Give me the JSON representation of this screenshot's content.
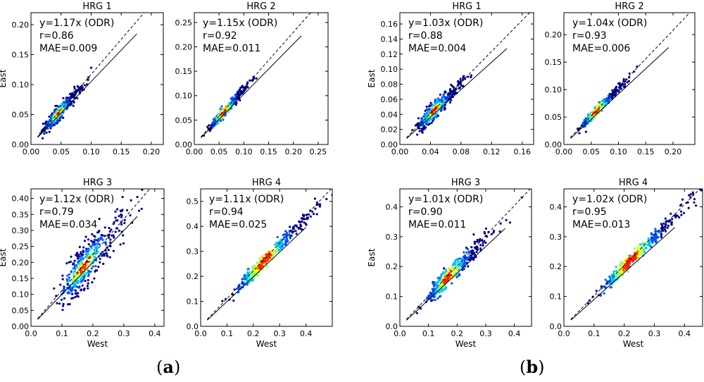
{
  "figure_captions": {
    "a": {
      "open": "(",
      "letter": "a",
      "close": ")"
    },
    "b": {
      "open": "(",
      "letter": "b",
      "close": ")"
    }
  },
  "colors": {
    "density_low": "#00008b",
    "density_mid": "#00bfff",
    "density_high": "#ffff00",
    "density_peak": "#ff2000",
    "fit_line": "#000000"
  },
  "chart_data": [
    {
      "id": "a-hrg1",
      "type": "scatter",
      "title": "HRG 1",
      "xlabel": "",
      "ylabel": "East",
      "xlim": [
        0,
        0.22
      ],
      "ylim": [
        0,
        0.22
      ],
      "xticks": [
        "0.00",
        "0.05",
        "0.10",
        "0.15",
        "0.20"
      ],
      "yticks": [
        "0.00",
        "0.05",
        "0.10",
        "0.15",
        "0.20"
      ],
      "annotation": [
        "y=1.17x (ODR)",
        "r=0.86",
        "MAE=0.009"
      ],
      "slope": 1.17,
      "r": 0.86,
      "mae": 0.009,
      "center": 0.045
    },
    {
      "id": "a-hrg2",
      "type": "scatter",
      "title": "HRG 2",
      "xlabel": "",
      "ylabel": "",
      "xlim": [
        0,
        0.27
      ],
      "ylim": [
        0,
        0.27
      ],
      "xticks": [
        "0.00",
        "0.05",
        "0.10",
        "0.15",
        "0.20",
        "0.25"
      ],
      "yticks": [
        "0.00",
        "0.05",
        "0.10",
        "0.15",
        "0.20",
        "0.25"
      ],
      "annotation": [
        "y=1.15x (ODR)",
        "r=0.92",
        "MAE=0.011"
      ],
      "slope": 1.15,
      "r": 0.92,
      "mae": 0.011,
      "center": 0.06
    },
    {
      "id": "a-hrg3",
      "type": "scatter",
      "title": "HRG 3",
      "xlabel": "West",
      "ylabel": "East",
      "xlim": [
        0,
        0.43
      ],
      "ylim": [
        0,
        0.43
      ],
      "xticks": [
        "0.0",
        "0.1",
        "0.2",
        "0.3",
        "0.4"
      ],
      "yticks": [
        "0.00",
        "0.05",
        "0.10",
        "0.15",
        "0.20",
        "0.25",
        "0.30",
        "0.35",
        "0.40"
      ],
      "annotation": [
        "y=1.12x (ODR)",
        "r=0.79",
        "MAE=0.034"
      ],
      "slope": 1.12,
      "r": 0.79,
      "mae": 0.034,
      "center": 0.17
    },
    {
      "id": "a-hrg4",
      "type": "scatter",
      "title": "HRG 4",
      "xlabel": "West",
      "ylabel": "",
      "xlim": [
        0,
        0.5
      ],
      "ylim": [
        0,
        0.55
      ],
      "xticks": [
        "0.0",
        "0.1",
        "0.2",
        "0.3",
        "0.4"
      ],
      "yticks": [
        "0.0",
        "0.1",
        "0.2",
        "0.3",
        "0.4",
        "0.5"
      ],
      "annotation": [
        "y=1.11x (ODR)",
        "r=0.94",
        "MAE=0.025"
      ],
      "slope": 1.11,
      "r": 0.94,
      "mae": 0.025,
      "center": 0.24
    },
    {
      "id": "b-hrg1",
      "type": "scatter",
      "title": "HRG 1",
      "xlabel": "",
      "ylabel": "East",
      "xlim": [
        0,
        0.175
      ],
      "ylim": [
        0,
        0.175
      ],
      "xticks": [
        "0.00",
        "0.04",
        "0.08",
        "0.12",
        "0.16"
      ],
      "yticks": [
        "0.00",
        "0.02",
        "0.04",
        "0.06",
        "0.08",
        "0.10",
        "0.12",
        "0.14",
        "0.16"
      ],
      "annotation": [
        "y=1.03x (ODR)",
        "r=0.88",
        "MAE=0.004"
      ],
      "slope": 1.03,
      "r": 0.88,
      "mae": 0.004,
      "center": 0.045
    },
    {
      "id": "b-hrg2",
      "type": "scatter",
      "title": "HRG 2",
      "xlabel": "",
      "ylabel": "",
      "xlim": [
        0,
        0.24
      ],
      "ylim": [
        0,
        0.24
      ],
      "xticks": [
        "0.00",
        "0.05",
        "0.10",
        "0.15",
        "0.20"
      ],
      "yticks": [
        "0.00",
        "0.05",
        "0.10",
        "0.15",
        "0.20"
      ],
      "annotation": [
        "y=1.04x (ODR)",
        "r=0.93",
        "MAE=0.006"
      ],
      "slope": 1.04,
      "r": 0.93,
      "mae": 0.006,
      "center": 0.06
    },
    {
      "id": "b-hrg3",
      "type": "scatter",
      "title": "HRG 3",
      "xlabel": "West",
      "ylabel": "East",
      "xlim": [
        0,
        0.46
      ],
      "ylim": [
        0,
        0.46
      ],
      "xticks": [
        "0.0",
        "0.1",
        "0.2",
        "0.3",
        "0.4"
      ],
      "yticks": [
        "0.0",
        "0.1",
        "0.2",
        "0.3",
        "0.4"
      ],
      "annotation": [
        "y=1.01x (ODR)",
        "r=0.90",
        "MAE=0.011"
      ],
      "slope": 1.01,
      "r": 0.9,
      "mae": 0.011,
      "center": 0.17
    },
    {
      "id": "b-hrg4",
      "type": "scatter",
      "title": "HRG 4",
      "xlabel": "West",
      "ylabel": "",
      "xlim": [
        0,
        0.46
      ],
      "ylim": [
        0,
        0.46
      ],
      "xticks": [
        "0.0",
        "0.1",
        "0.2",
        "0.3",
        "0.4"
      ],
      "yticks": [
        "0.0",
        "0.1",
        "0.2",
        "0.3",
        "0.4"
      ],
      "annotation": [
        "y=1.02x (ODR)",
        "r=0.95",
        "MAE=0.013"
      ],
      "slope": 1.02,
      "r": 0.95,
      "mae": 0.013,
      "center": 0.22
    }
  ]
}
